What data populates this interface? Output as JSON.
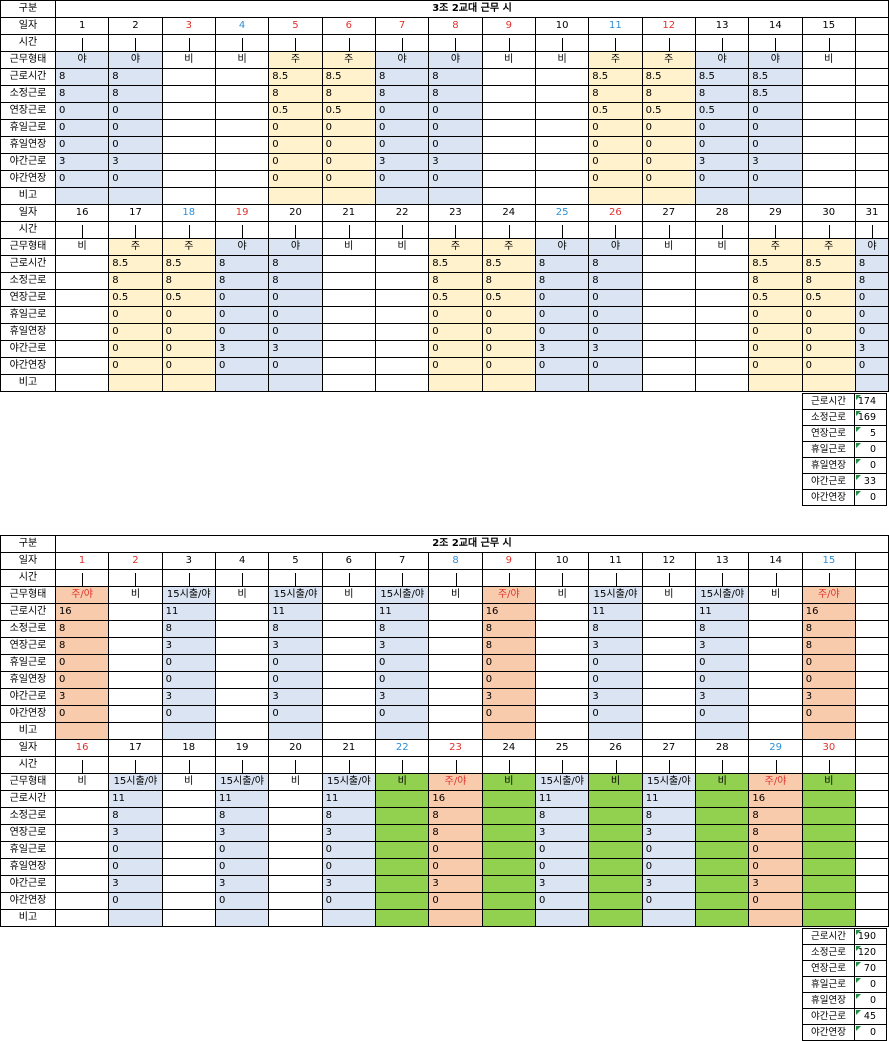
{
  "labels": {
    "category": "구분",
    "date": "일자",
    "time": "시간",
    "shift_type": "근무형태",
    "rows": [
      "근로시간",
      "소정근로",
      "연장근로",
      "휴일근로",
      "휴일연장",
      "야간근로",
      "야간연장"
    ],
    "remark": "비고"
  },
  "table1": {
    "title": "3조 2교대 근무 시",
    "half1": {
      "days": [
        "1",
        "2",
        "3",
        "4",
        "5",
        "6",
        "7",
        "8",
        "9",
        "10",
        "11",
        "12",
        "13",
        "14",
        "15"
      ],
      "day_colors": [
        "",
        "",
        "red",
        "blue",
        "red",
        "red",
        "red",
        "red",
        "red",
        "",
        "blue",
        "red",
        "",
        "",
        ""
      ],
      "shifts": [
        "야",
        "야",
        "비",
        "비",
        "주",
        "주",
        "야",
        "야",
        "비",
        "비",
        "주",
        "주",
        "야",
        "야",
        "비"
      ],
      "values": [
        [
          "8",
          "8",
          "",
          "",
          "8.5",
          "8.5",
          "8",
          "8",
          "",
          "",
          "8.5",
          "8.5",
          "8.5",
          "8.5",
          ""
        ],
        [
          "8",
          "8",
          "",
          "",
          "8",
          "8",
          "8",
          "8",
          "",
          "",
          "8",
          "8",
          "8",
          "8.5",
          ""
        ],
        [
          "0",
          "0",
          "",
          "",
          "0.5",
          "0.5",
          "0",
          "0",
          "",
          "",
          "0.5",
          "0.5",
          "0.5",
          "0",
          ""
        ],
        [
          "0",
          "0",
          "",
          "",
          "0",
          "0",
          "0",
          "0",
          "",
          "",
          "0",
          "0",
          "0",
          "0",
          ""
        ],
        [
          "0",
          "0",
          "",
          "",
          "0",
          "0",
          "0",
          "0",
          "",
          "",
          "0",
          "0",
          "0",
          "0",
          ""
        ],
        [
          "3",
          "3",
          "",
          "",
          "0",
          "0",
          "3",
          "3",
          "",
          "",
          "0",
          "0",
          "3",
          "3",
          ""
        ],
        [
          "0",
          "0",
          "",
          "",
          "0",
          "0",
          "0",
          "0",
          "",
          "",
          "0",
          "0",
          "0",
          "0",
          ""
        ]
      ]
    },
    "half2": {
      "days": [
        "16",
        "17",
        "18",
        "19",
        "20",
        "21",
        "22",
        "23",
        "24",
        "25",
        "26",
        "27",
        "28",
        "29",
        "30",
        "31"
      ],
      "day_colors": [
        "",
        "",
        "blue",
        "red",
        "",
        "",
        "",
        "",
        "",
        "blue",
        "red",
        "",
        "",
        "",
        "",
        ""
      ],
      "shifts": [
        "비",
        "주",
        "주",
        "야",
        "야",
        "비",
        "비",
        "주",
        "주",
        "야",
        "야",
        "비",
        "비",
        "주",
        "주",
        "야"
      ],
      "values": [
        [
          "",
          "8.5",
          "8.5",
          "8",
          "8",
          "",
          "",
          "8.5",
          "8.5",
          "8",
          "8",
          "",
          "",
          "8.5",
          "8.5",
          "8"
        ],
        [
          "",
          "8",
          "8",
          "8",
          "8",
          "",
          "",
          "8",
          "8",
          "8",
          "8",
          "",
          "",
          "8",
          "8",
          "8"
        ],
        [
          "",
          "0.5",
          "0.5",
          "0",
          "0",
          "",
          "",
          "0.5",
          "0.5",
          "0",
          "0",
          "",
          "",
          "0.5",
          "0.5",
          "0"
        ],
        [
          "",
          "0",
          "0",
          "0",
          "0",
          "",
          "",
          "0",
          "0",
          "0",
          "0",
          "",
          "",
          "0",
          "0",
          "0"
        ],
        [
          "",
          "0",
          "0",
          "0",
          "0",
          "",
          "",
          "0",
          "0",
          "0",
          "0",
          "",
          "",
          "0",
          "0",
          "0"
        ],
        [
          "",
          "0",
          "0",
          "3",
          "3",
          "",
          "",
          "0",
          "0",
          "3",
          "3",
          "",
          "",
          "0",
          "0",
          "3"
        ],
        [
          "",
          "0",
          "0",
          "0",
          "0",
          "",
          "",
          "0",
          "0",
          "0",
          "0",
          "",
          "",
          "0",
          "0",
          "0"
        ]
      ]
    },
    "summary": [
      {
        "label": "근로시간",
        "value": "174"
      },
      {
        "label": "소정근로",
        "value": "169"
      },
      {
        "label": "연장근로",
        "value": "5"
      },
      {
        "label": "휴일근로",
        "value": "0"
      },
      {
        "label": "휴일연장",
        "value": "0"
      },
      {
        "label": "야간근로",
        "value": "33"
      },
      {
        "label": "야간연장",
        "value": "0"
      }
    ]
  },
  "table2": {
    "title": "2조 2교대 근무 시",
    "half1": {
      "days": [
        "1",
        "2",
        "3",
        "4",
        "5",
        "6",
        "7",
        "8",
        "9",
        "10",
        "11",
        "12",
        "13",
        "14",
        "15"
      ],
      "day_colors": [
        "red2",
        "red2",
        "",
        "",
        "",
        "",
        "",
        "blue",
        "red",
        "",
        "",
        "",
        "",
        "",
        "blue"
      ],
      "shifts": [
        "주/야",
        "비",
        "15시출/야",
        "비",
        "15시출/야",
        "비",
        "15시출/야",
        "비",
        "주/야",
        "비",
        "15시출/야",
        "비",
        "15시출/야",
        "비",
        "주/야"
      ],
      "values": [
        [
          "16",
          "",
          "11",
          "",
          "11",
          "",
          "11",
          "",
          "16",
          "",
          "11",
          "",
          "11",
          "",
          "16"
        ],
        [
          "8",
          "",
          "8",
          "",
          "8",
          "",
          "8",
          "",
          "8",
          "",
          "8",
          "",
          "8",
          "",
          "8"
        ],
        [
          "8",
          "",
          "3",
          "",
          "3",
          "",
          "3",
          "",
          "8",
          "",
          "3",
          "",
          "3",
          "",
          "8"
        ],
        [
          "0",
          "",
          "0",
          "",
          "0",
          "",
          "0",
          "",
          "0",
          "",
          "0",
          "",
          "0",
          "",
          "0"
        ],
        [
          "0",
          "",
          "0",
          "",
          "0",
          "",
          "0",
          "",
          "0",
          "",
          "0",
          "",
          "0",
          "",
          "0"
        ],
        [
          "3",
          "",
          "3",
          "",
          "3",
          "",
          "3",
          "",
          "3",
          "",
          "3",
          "",
          "3",
          "",
          "3"
        ],
        [
          "0",
          "",
          "0",
          "",
          "0",
          "",
          "0",
          "",
          "0",
          "",
          "0",
          "",
          "0",
          "",
          "0"
        ]
      ]
    },
    "half2": {
      "days": [
        "16",
        "17",
        "18",
        "19",
        "20",
        "21",
        "22",
        "23",
        "24",
        "25",
        "26",
        "27",
        "28",
        "29",
        "30"
      ],
      "day_colors": [
        "red",
        "",
        "",
        "",
        "",
        "",
        "blue",
        "red",
        "",
        "",
        "",
        "",
        "",
        "blue",
        "red"
      ],
      "shifts": [
        "비",
        "15시출/야",
        "비",
        "15시출/야",
        "비",
        "15시출/야",
        "비",
        "주/야",
        "비",
        "15시출/야",
        "비",
        "15시출/야",
        "비",
        "주/야",
        "비"
      ],
      "values": [
        [
          "",
          "11",
          "",
          "11",
          "",
          "11",
          "",
          "16",
          "",
          "11",
          "",
          "11",
          "",
          "16",
          ""
        ],
        [
          "",
          "8",
          "",
          "8",
          "",
          "8",
          "",
          "8",
          "",
          "8",
          "",
          "8",
          "",
          "8",
          ""
        ],
        [
          "",
          "3",
          "",
          "3",
          "",
          "3",
          "",
          "8",
          "",
          "3",
          "",
          "3",
          "",
          "8",
          ""
        ],
        [
          "",
          "0",
          "",
          "0",
          "",
          "0",
          "",
          "0",
          "",
          "0",
          "",
          "0",
          "",
          "0",
          ""
        ],
        [
          "",
          "0",
          "",
          "0",
          "",
          "0",
          "",
          "0",
          "",
          "0",
          "",
          "0",
          "",
          "0",
          ""
        ],
        [
          "",
          "3",
          "",
          "3",
          "",
          "3",
          "",
          "3",
          "",
          "3",
          "",
          "3",
          "",
          "3",
          ""
        ],
        [
          "",
          "0",
          "",
          "0",
          "",
          "0",
          "",
          "0",
          "",
          "0",
          "",
          "0",
          "",
          "0",
          ""
        ]
      ]
    },
    "summary": [
      {
        "label": "근로시간",
        "value": "190"
      },
      {
        "label": "소정근로",
        "value": "120"
      },
      {
        "label": "연장근로",
        "value": "70"
      },
      {
        "label": "휴일근로",
        "value": "0"
      },
      {
        "label": "휴일연장",
        "value": "0"
      },
      {
        "label": "야간근로",
        "value": "45"
      },
      {
        "label": "야간연장",
        "value": "0"
      }
    ]
  },
  "colors": {
    "light_blue": "#dbe4f2",
    "light_yellow": "#fff2cc",
    "light_orange": "#f8cbad",
    "green": "#92d050",
    "red_text": "#e0322d",
    "blue_text": "#2f8fd6"
  }
}
